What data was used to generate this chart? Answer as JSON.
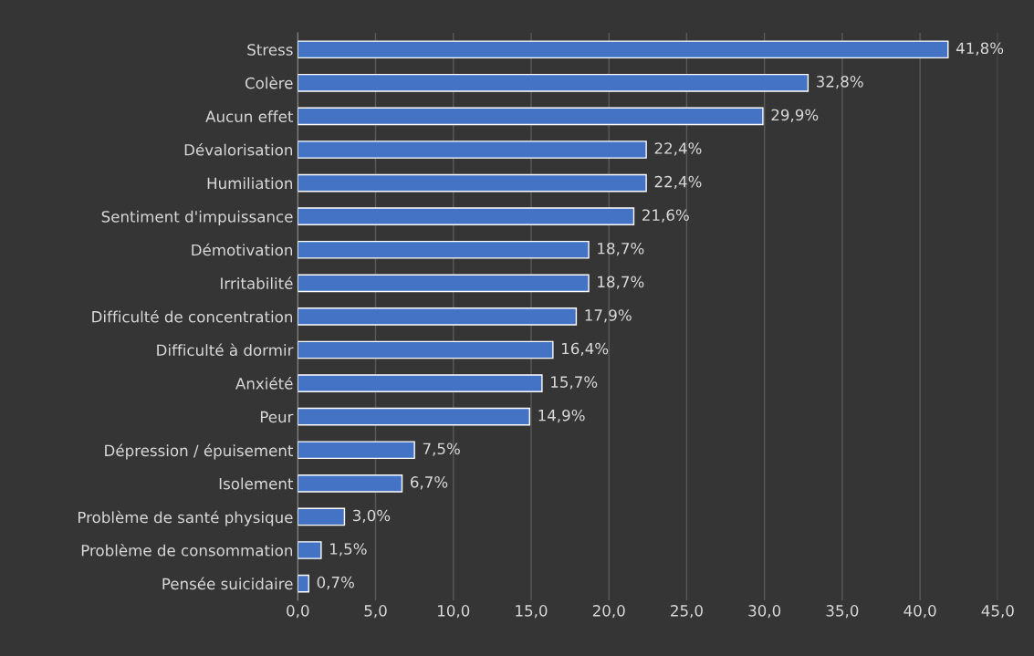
{
  "chart_data": {
    "type": "bar",
    "orientation": "horizontal",
    "categories": [
      "Stress",
      "Colère",
      "Aucun effet",
      "Dévalorisation",
      "Humiliation",
      "Sentiment d'impuissance",
      "Démotivation",
      "Irritabilité",
      "Difficulté de concentration",
      "Difficulté à dormir",
      "Anxiété",
      "Peur",
      "Dépression / épuisement",
      "Isolement",
      "Problème de santé physique",
      "Problème de consommation",
      "Pensée suicidaire"
    ],
    "values": [
      41.8,
      32.8,
      29.9,
      22.4,
      22.4,
      21.6,
      18.7,
      18.7,
      17.9,
      16.4,
      15.7,
      14.9,
      7.5,
      6.7,
      3.0,
      1.5,
      0.7
    ],
    "value_labels": [
      "41,8%",
      "32,8%",
      "29,9%",
      "22,4%",
      "22,4%",
      "21,6%",
      "18,7%",
      "18,7%",
      "17,9%",
      "16,4%",
      "15,7%",
      "14,9%",
      "7,5%",
      "6,7%",
      "3,0%",
      "1,5%",
      "0,7%"
    ],
    "color": "#4472c4",
    "xlim": [
      0,
      45
    ],
    "xticks": [
      {
        "value": 0,
        "label": "0,0"
      },
      {
        "value": 5,
        "label": "5,0"
      },
      {
        "value": 10,
        "label": "10,0"
      },
      {
        "value": 15,
        "label": "15,0"
      },
      {
        "value": 20,
        "label": "20,0"
      },
      {
        "value": 25,
        "label": "25,0"
      },
      {
        "value": 30,
        "label": "30,0"
      },
      {
        "value": 35,
        "label": "35,0"
      },
      {
        "value": 40,
        "label": "40,0"
      },
      {
        "value": 45,
        "label": "45,0"
      }
    ],
    "grid": "x",
    "legend": false
  }
}
